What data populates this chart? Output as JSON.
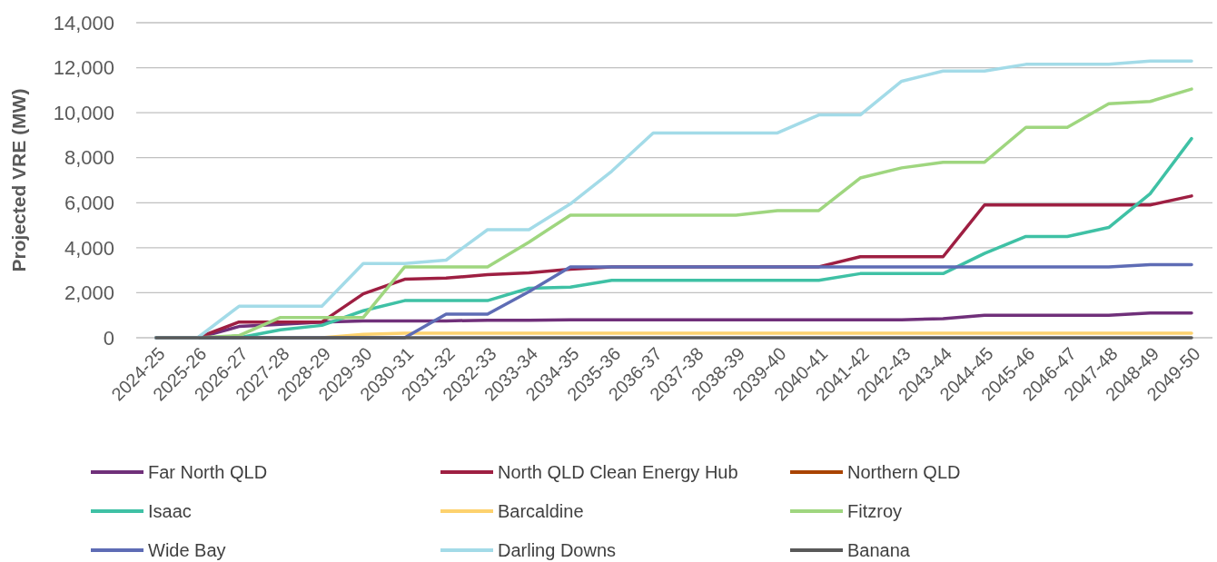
{
  "chart_data": {
    "type": "line",
    "ylabel": "Projected VRE (MW)",
    "categories": [
      "2024-25",
      "2025-26",
      "2026-27",
      "2027-28",
      "2028-29",
      "2029-30",
      "2030-31",
      "2031-32",
      "2032-33",
      "2033-34",
      "2034-35",
      "2035-36",
      "2036-37",
      "2037-38",
      "2038-39",
      "2039-40",
      "2040-41",
      "2041-42",
      "2042-43",
      "2043-44",
      "2044-45",
      "2045-46",
      "2046-47",
      "2047-48",
      "2048-49",
      "2049-50"
    ],
    "ylim": [
      0,
      14000
    ],
    "yticks": [
      {
        "value": 0,
        "label": "0"
      },
      {
        "value": 2000,
        "label": "2,000"
      },
      {
        "value": 4000,
        "label": "4,000"
      },
      {
        "value": 6000,
        "label": "6,000"
      },
      {
        "value": 8000,
        "label": "8,000"
      },
      {
        "value": 10000,
        "label": "10,000"
      },
      {
        "value": 12000,
        "label": "12,000"
      },
      {
        "value": 14000,
        "label": "14,000"
      }
    ],
    "grid": "y",
    "legend": "bottom",
    "marker": "none",
    "line_style": "solid",
    "series": [
      {
        "name": "Far North QLD",
        "color": "#70307a",
        "values": [
          0,
          0,
          500,
          600,
          700,
          750,
          750,
          750,
          780,
          780,
          800,
          800,
          800,
          800,
          800,
          800,
          800,
          800,
          800,
          850,
          1000,
          1000,
          1000,
          1000,
          1100,
          1100
        ]
      },
      {
        "name": "North QLD Clean Energy Hub",
        "color": "#9e1f42",
        "values": [
          0,
          0,
          700,
          700,
          700,
          1950,
          2600,
          2650,
          2800,
          2880,
          3050,
          3150,
          3150,
          3150,
          3150,
          3150,
          3150,
          3600,
          3600,
          3600,
          5900,
          5900,
          5900,
          5900,
          5900,
          6300
        ]
      },
      {
        "name": "Northern QLD",
        "color": "#a94400",
        "values": [
          null,
          null,
          null,
          null,
          null,
          null,
          null,
          null,
          null,
          null,
          null,
          null,
          null,
          null,
          null,
          null,
          null,
          null,
          null,
          null,
          null,
          null,
          null,
          null,
          null,
          null
        ]
      },
      {
        "name": "Isaac",
        "color": "#3fc1a5",
        "values": [
          0,
          0,
          0,
          350,
          550,
          1200,
          1650,
          1650,
          1650,
          2200,
          2250,
          2550,
          2550,
          2550,
          2550,
          2550,
          2550,
          2850,
          2850,
          2850,
          3750,
          4500,
          4500,
          4900,
          6400,
          8850
        ]
      },
      {
        "name": "Barcaldine",
        "color": "#fdd26e",
        "values": [
          null,
          null,
          null,
          null,
          0,
          150,
          200,
          200,
          200,
          200,
          200,
          200,
          200,
          200,
          200,
          200,
          200,
          200,
          200,
          200,
          200,
          200,
          200,
          200,
          200,
          200
        ]
      },
      {
        "name": "Fitzroy",
        "color": "#9fd67f",
        "values": [
          0,
          0,
          100,
          900,
          900,
          900,
          3150,
          3150,
          3150,
          4250,
          5450,
          5450,
          5450,
          5450,
          5450,
          5650,
          5650,
          7100,
          7550,
          7800,
          7800,
          9350,
          9350,
          10400,
          10500,
          11050
        ]
      },
      {
        "name": "Wide Bay",
        "color": "#5e6cb5",
        "values": [
          0,
          0,
          0,
          0,
          0,
          0,
          0,
          1050,
          1050,
          2050,
          3150,
          3150,
          3150,
          3150,
          3150,
          3150,
          3150,
          3150,
          3150,
          3150,
          3150,
          3150,
          3150,
          3150,
          3250,
          3250
        ]
      },
      {
        "name": "Darling Downs",
        "color": "#a3dbe8",
        "values": [
          0,
          0,
          1400,
          1400,
          1400,
          3300,
          3300,
          3450,
          4800,
          4800,
          5950,
          7400,
          9100,
          9100,
          9100,
          9100,
          9900,
          9900,
          11400,
          11850,
          11850,
          12150,
          12150,
          12150,
          12300,
          12300
        ]
      },
      {
        "name": "Banana",
        "color": "#595959",
        "values": [
          0,
          0,
          0,
          0,
          0,
          0,
          0,
          0,
          0,
          0,
          0,
          0,
          0,
          0,
          0,
          0,
          0,
          0,
          0,
          0,
          0,
          0,
          0,
          0,
          0,
          0
        ]
      }
    ]
  }
}
